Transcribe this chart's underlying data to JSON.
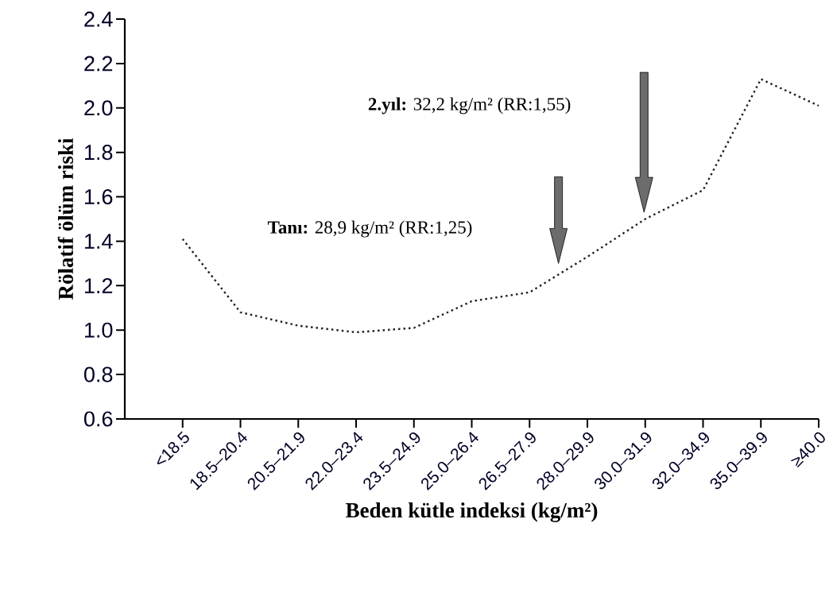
{
  "chart_data": {
    "type": "line",
    "xlabel": "Beden kütle indeksi (kg/m²)",
    "ylabel": "Rölatif ölüm riski",
    "categories": [
      "<18.5",
      "18.5–20.4",
      "20.5–21.9",
      "22.0–23.4",
      "23.5–24.9",
      "25.0–26.4",
      "26.5–27.9",
      "28.0–29.9",
      "30.0–31.9",
      "32.0–34.9",
      "35.0–39.9",
      "≥40.0"
    ],
    "values": [
      1.41,
      1.08,
      1.02,
      0.99,
      1.01,
      1.13,
      1.17,
      1.33,
      1.5,
      1.63,
      2.13,
      2.01
    ],
    "color": "#222222",
    "line_style": "dotted",
    "marker": "none",
    "ylim": [
      0.6,
      2.4
    ],
    "yticks": [
      {
        "value": 0.6,
        "label": "0.6"
      },
      {
        "value": 0.8,
        "label": "0.8"
      },
      {
        "value": 1.0,
        "label": "1.0"
      },
      {
        "value": 1.2,
        "label": "1.2"
      },
      {
        "value": 1.4,
        "label": "1.4"
      },
      {
        "value": 1.6,
        "label": "1.6"
      },
      {
        "value": 1.8,
        "label": "1.8"
      },
      {
        "value": 2.0,
        "label": "2.0"
      },
      {
        "value": 2.2,
        "label": "2.2"
      },
      {
        "value": 2.4,
        "label": "2.4"
      }
    ],
    "annotations": [
      "**Tanı:** 28,9 kg/m² (RR:1,25)",
      "**2.yıl:** 32,2 kg/m² (RR:1,55)"
    ]
  }
}
